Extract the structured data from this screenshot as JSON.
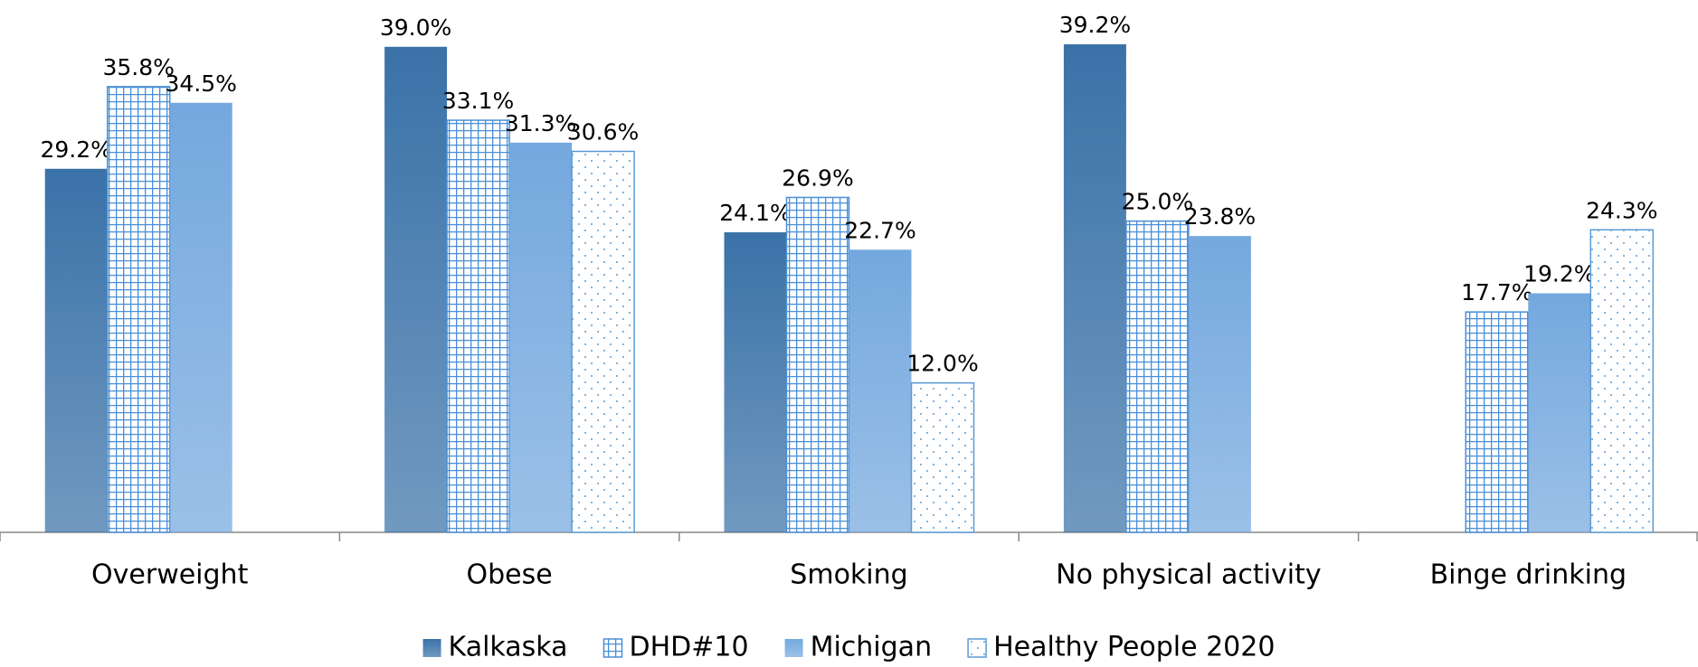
{
  "chart_data": {
    "type": "bar",
    "categories": [
      "Overweight",
      "Obese",
      "Smoking",
      "No physical activity",
      "Binge drinking"
    ],
    "ylim": [
      0,
      40
    ],
    "series": [
      {
        "name": "Kalkaska",
        "color": "#3a72a8",
        "pattern": "solid",
        "values": [
          29.2,
          39.0,
          24.1,
          39.2,
          null
        ],
        "value_labels": [
          "29.2%",
          "39.0%",
          "24.1%",
          "39.2%",
          null
        ]
      },
      {
        "name": "DHD#10",
        "color": "#4a8fd6",
        "pattern": "grid",
        "values": [
          35.8,
          33.1,
          26.9,
          25.0,
          17.7
        ],
        "value_labels": [
          "35.8%",
          "33.1%",
          "26.9%",
          "25.0%",
          "17.7%"
        ]
      },
      {
        "name": "Michigan",
        "color": "#74a8de",
        "pattern": "solid",
        "values": [
          34.5,
          31.3,
          22.7,
          23.8,
          19.2
        ],
        "value_labels": [
          "34.5%",
          "31.3%",
          "22.7%",
          "23.8%",
          "19.2%"
        ]
      },
      {
        "name": "Healthy People 2020",
        "color": "#5b9bd5",
        "pattern": "dots",
        "values": [
          null,
          30.6,
          12.0,
          null,
          24.3
        ],
        "value_labels": [
          null,
          "30.6%",
          "12.0%",
          null,
          "24.3%"
        ]
      }
    ]
  }
}
